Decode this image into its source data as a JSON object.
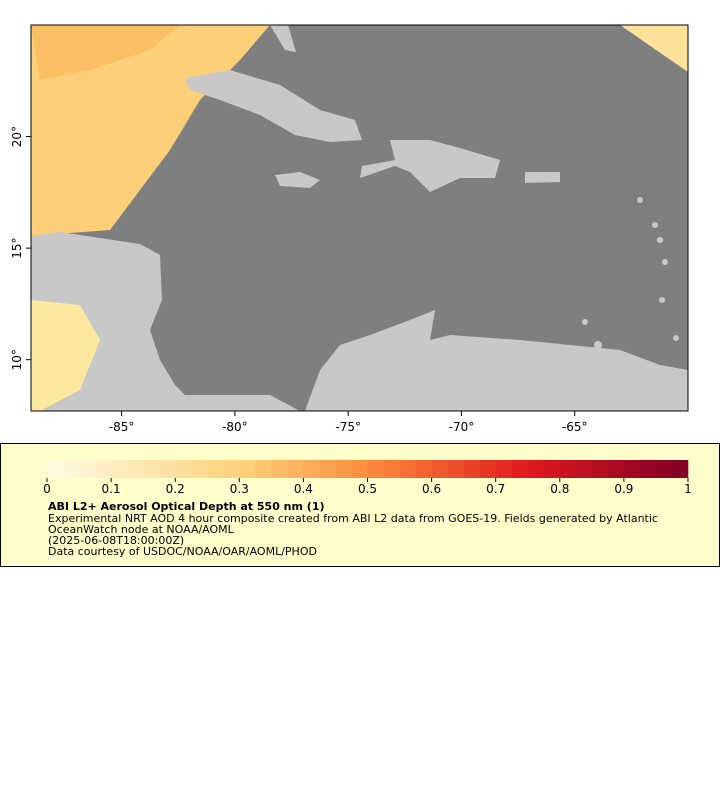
{
  "map": {
    "xlim": [
      -89,
      -60
    ],
    "ylim": [
      7.7,
      25
    ],
    "xticks": [
      {
        "value": -85,
        "label": "-85°"
      },
      {
        "value": -80,
        "label": "-80°"
      },
      {
        "value": -75,
        "label": "-75°"
      },
      {
        "value": -70,
        "label": "-70°"
      },
      {
        "value": -65,
        "label": "-65°"
      }
    ],
    "yticks": [
      {
        "value": 10,
        "label": "10°"
      },
      {
        "value": 15,
        "label": "15°"
      },
      {
        "value": 20,
        "label": "20°"
      }
    ]
  },
  "legend": {
    "title": "ABI L2+ Aerosol Optical Depth at 550 nm (1)",
    "lines": [
      "Experimental NRT AOD 4 hour composite created from ABI L2 data from GOES-19. Fields generated by Atlantic",
      "OceanWatch node at NOAA/AOML",
      "(2025-06-08T18:00:00Z)",
      "Data courtesy of USDOC/NOAA/OAR/AOML/PHOD"
    ],
    "colorbar": {
      "range": [
        0,
        1
      ],
      "ticks": [
        0,
        0.1,
        0.2,
        0.3,
        0.4,
        0.5,
        0.6,
        0.7,
        0.8,
        0.9,
        1
      ],
      "stops": [
        {
          "value": 0,
          "color": "#fffbe3"
        },
        {
          "value": 0.3,
          "color": "#fed27c"
        },
        {
          "value": 0.5,
          "color": "#fd8d3c"
        },
        {
          "value": 0.75,
          "color": "#e0191c"
        },
        {
          "value": 1,
          "color": "#7f0027"
        }
      ]
    }
  }
}
